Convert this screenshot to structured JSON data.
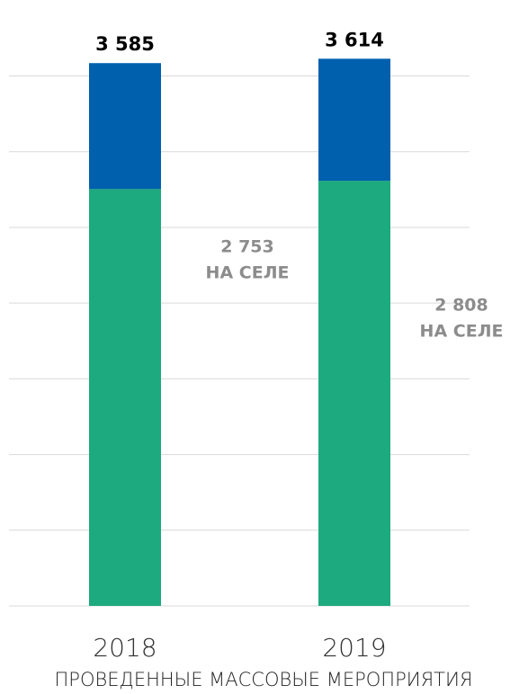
{
  "chart_data": {
    "type": "bar",
    "stacked": true,
    "title": "ПРОВЕДЕННЫЕ МАССОВЫЕ МЕРОПРИЯТИЯ",
    "categories": [
      "2018",
      "2019"
    ],
    "series": [
      {
        "name": "НА СЕЛЕ",
        "color": "#1daa7e",
        "values": [
          2753,
          2808
        ],
        "value_labels": [
          "2 753",
          "2 808"
        ]
      },
      {
        "color": "#0060ad",
        "values": [
          832,
          806
        ]
      }
    ],
    "totals": [
      3585,
      3614
    ],
    "total_labels": [
      "3 585",
      "3 614"
    ],
    "ylim": [
      0,
      3800
    ],
    "yticks": [
      0,
      500,
      1000,
      1500,
      2000,
      2500,
      3000,
      3500
    ],
    "grid": true
  }
}
